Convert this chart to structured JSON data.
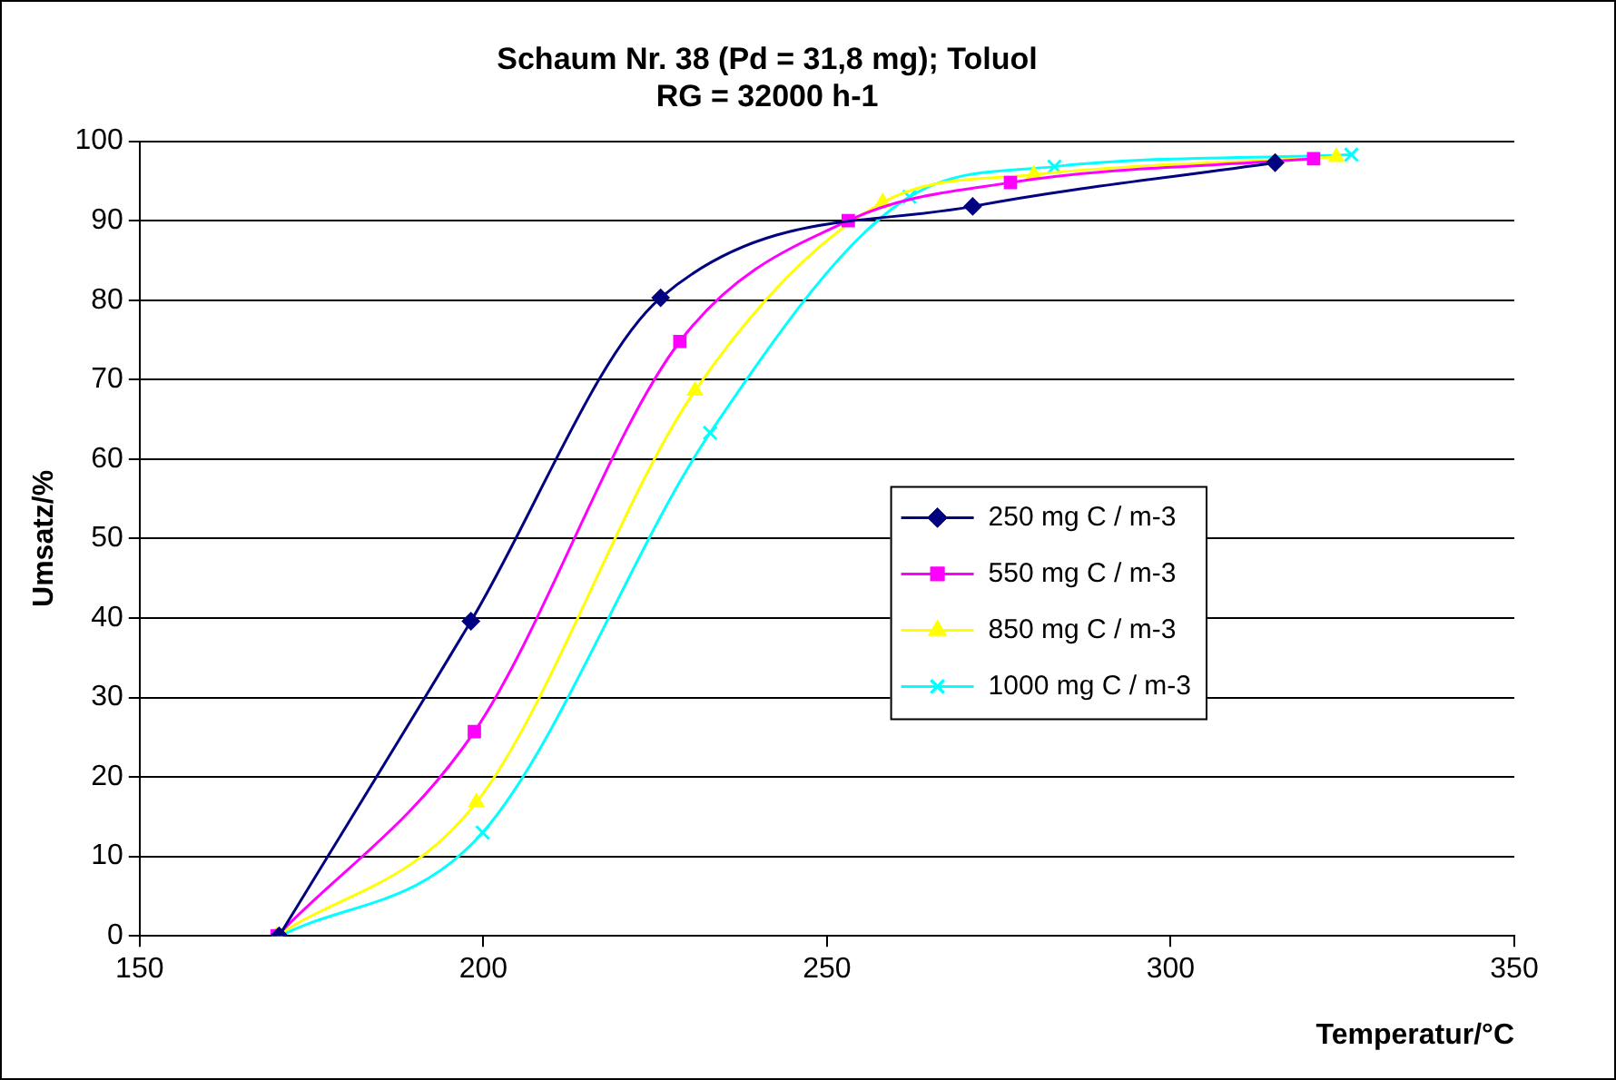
{
  "chart_data": {
    "type": "line",
    "title": [
      "Schaum Nr. 38 (Pd = 31,8 mg); Toluol",
      "RG = 32000 h-1"
    ],
    "xlabel": "Temperatur/°C",
    "ylabel": "Umsatz/%",
    "xlim": [
      150,
      350
    ],
    "xticks": [
      150,
      200,
      250,
      300,
      350
    ],
    "ylim": [
      0,
      100
    ],
    "yticks": [
      0,
      10,
      20,
      30,
      40,
      50,
      60,
      70,
      80,
      90,
      100
    ],
    "grid": "y",
    "legend": "right",
    "line_style": "solid",
    "series": [
      {
        "name": "250 mg C / m-3",
        "color": "#000080",
        "marker": "diamond",
        "x": [
          170.3,
          198.2,
          225.8,
          271.2,
          315.2
        ],
        "values": [
          0,
          39.6,
          80.3,
          91.8,
          97.3
        ]
      },
      {
        "name": "550 mg C / m-3",
        "color": "#ff00ff",
        "marker": "square",
        "x": [
          170,
          198.7,
          228.6,
          253.1,
          276.7,
          320.8
        ],
        "values": [
          0,
          25.7,
          74.8,
          90,
          94.8,
          97.8
        ]
      },
      {
        "name": "850 mg C / m-3",
        "color": "#ffff00",
        "marker": "triangle",
        "x": [
          170,
          199,
          230.8,
          258.1,
          280.1,
          324.1
        ],
        "values": [
          0,
          16.8,
          68.6,
          92.3,
          95.8,
          98
        ]
      },
      {
        "name": "1000 mg C / m-3",
        "color": "#00ffff",
        "marker": "cross",
        "x": [
          170.5,
          199.9,
          233,
          262,
          283.1,
          326.3
        ],
        "values": [
          0,
          13,
          63.3,
          93,
          96.8,
          98.3
        ]
      }
    ]
  }
}
